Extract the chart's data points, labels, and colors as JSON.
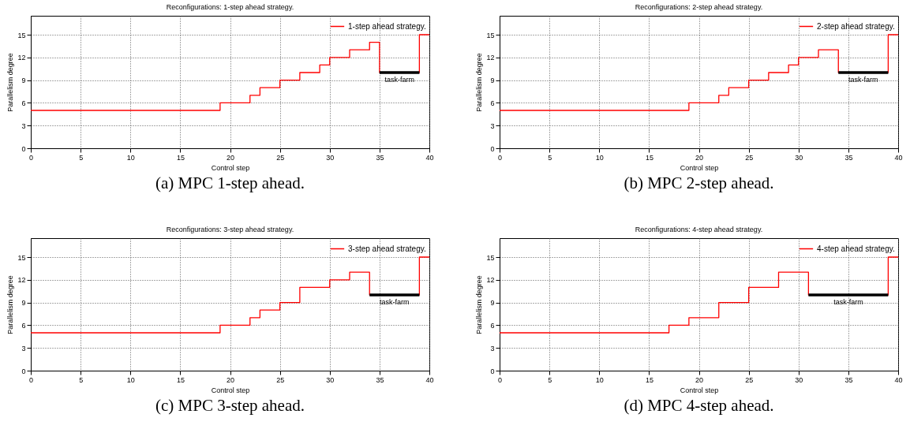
{
  "chart_data": [
    {
      "type": "step",
      "title": "Reconfigurations: 1-step ahead strategy.",
      "xlabel": "Control step",
      "ylabel": "Parallelism degree",
      "x": [
        0,
        19,
        22,
        23,
        25,
        27,
        29,
        30,
        32,
        34,
        35,
        39,
        40
      ],
      "series": [
        {
          "name": "1-step ahead strategy.",
          "color": "#ff0000",
          "values": [
            5,
            6,
            7,
            8,
            9,
            10,
            11,
            12,
            13,
            14,
            10,
            15,
            15
          ]
        },
        {
          "name": "task-farm",
          "color": "#000000",
          "type": "line",
          "x": [
            35,
            39
          ],
          "values": [
            10,
            10
          ]
        }
      ],
      "xlim": [
        0,
        40
      ],
      "xticks": [
        0,
        5,
        10,
        15,
        20,
        25,
        30,
        35,
        40
      ],
      "ylim": [
        0,
        17.5
      ],
      "yticks": [
        0,
        3,
        6,
        9,
        12,
        15
      ],
      "grid": true,
      "legend": "top right",
      "annotations": [
        "(a) MPC 1-step ahead."
      ]
    },
    {
      "type": "step",
      "title": "Reconfigurations: 2-step ahead strategy.",
      "xlabel": "Control step",
      "ylabel": "Parallelism degree",
      "x": [
        0,
        19,
        22,
        23,
        25,
        27,
        29,
        30,
        32,
        34,
        39,
        40
      ],
      "series": [
        {
          "name": "2-step ahead strategy.",
          "color": "#ff0000",
          "values": [
            5,
            6,
            7,
            8,
            9,
            10,
            11,
            12,
            13,
            10,
            15,
            15
          ]
        },
        {
          "name": "task-farm",
          "color": "#000000",
          "type": "line",
          "x": [
            34,
            39
          ],
          "values": [
            10,
            10
          ]
        }
      ],
      "xlim": [
        0,
        40
      ],
      "xticks": [
        0,
        5,
        10,
        15,
        20,
        25,
        30,
        35,
        40
      ],
      "ylim": [
        0,
        17.5
      ],
      "yticks": [
        0,
        3,
        6,
        9,
        12,
        15
      ],
      "grid": true,
      "legend": "top right",
      "annotations": [
        "(b) MPC 2-step ahead."
      ]
    },
    {
      "type": "step",
      "title": "Reconfigurations: 3-step ahead strategy.",
      "xlabel": "Control step",
      "ylabel": "Parallelism degree",
      "x": [
        0,
        19,
        22,
        23,
        25,
        27,
        30,
        32,
        34,
        39,
        40
      ],
      "series": [
        {
          "name": "3-step ahead strategy.",
          "color": "#ff0000",
          "values": [
            5,
            6,
            7,
            8,
            9,
            11,
            12,
            13,
            10,
            15,
            15
          ]
        },
        {
          "name": "task-farm",
          "color": "#000000",
          "type": "line",
          "x": [
            34,
            39
          ],
          "values": [
            10,
            10
          ]
        }
      ],
      "xlim": [
        0,
        40
      ],
      "xticks": [
        0,
        5,
        10,
        15,
        20,
        25,
        30,
        35,
        40
      ],
      "ylim": [
        0,
        17.5
      ],
      "yticks": [
        0,
        3,
        6,
        9,
        12,
        15
      ],
      "grid": true,
      "legend": "top right",
      "annotations": [
        "(c) MPC 3-step ahead."
      ]
    },
    {
      "type": "step",
      "title": "Reconfigurations: 4-step ahead strategy.",
      "xlabel": "Control step",
      "ylabel": "Parallelism degree",
      "x": [
        0,
        17,
        19,
        22,
        25,
        28,
        31,
        39,
        40
      ],
      "series": [
        {
          "name": "4-step ahead strategy.",
          "color": "#ff0000",
          "values": [
            5,
            6,
            7,
            9,
            11,
            13,
            10,
            15,
            15
          ]
        },
        {
          "name": "task-farm",
          "color": "#000000",
          "type": "line",
          "x": [
            31,
            39
          ],
          "values": [
            10,
            10
          ]
        }
      ],
      "xlim": [
        0,
        40
      ],
      "xticks": [
        0,
        5,
        10,
        15,
        20,
        25,
        30,
        35,
        40
      ],
      "ylim": [
        0,
        17.5
      ],
      "yticks": [
        0,
        3,
        6,
        9,
        12,
        15
      ],
      "grid": true,
      "legend": "top right",
      "annotations": [
        "(d) MPC 4-step ahead."
      ]
    }
  ]
}
